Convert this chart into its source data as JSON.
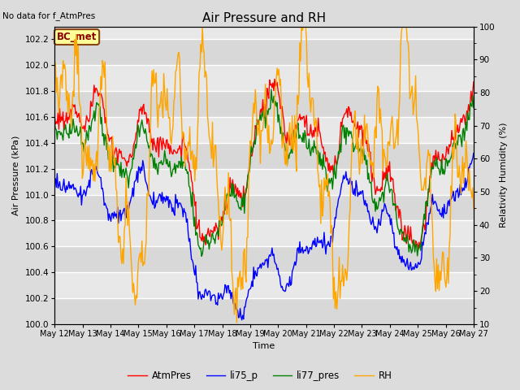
{
  "title": "Air Pressure and RH",
  "title_note": "No data for f_AtmPres",
  "xlabel": "Time",
  "ylabel_left": "Air Pressure (kPa)",
  "ylabel_right": "Relativity Humidity (%)",
  "annotation": "BC_met",
  "x_tick_labels": [
    "May 12",
    "May 13",
    "May 14",
    "May 15",
    "May 16",
    "May 17",
    "May 18",
    "May 19",
    "May 20",
    "May 21",
    "May 22",
    "May 23",
    "May 24",
    "May 25",
    "May 26",
    "May 27"
  ],
  "ylim_left": [
    100.0,
    102.3
  ],
  "ylim_right": [
    10,
    100
  ],
  "yticks_left": [
    100.0,
    100.2,
    100.4,
    100.6,
    100.8,
    101.0,
    101.2,
    101.4,
    101.6,
    101.8,
    102.0,
    102.2
  ],
  "yticks_right": [
    10,
    20,
    30,
    40,
    50,
    60,
    70,
    80,
    90,
    100
  ],
  "legend": [
    "AtmPres",
    "li75_p",
    "li77_pres",
    "RH"
  ],
  "line_colors": [
    "red",
    "blue",
    "green",
    "orange"
  ],
  "fig_facecolor": "#dcdcdc",
  "plot_facecolor": "#e8e8e8",
  "n_points": 500
}
